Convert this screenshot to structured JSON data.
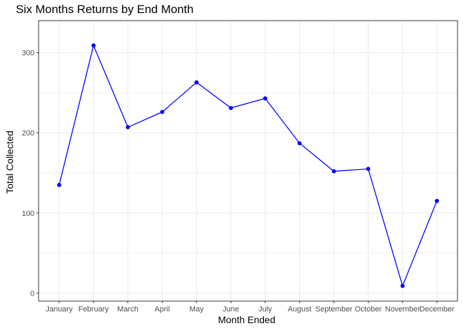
{
  "chart_data": {
    "type": "line",
    "title": "Six Months Returns by End Month",
    "xlabel": "Month Ended",
    "ylabel": "Total Collected",
    "categories": [
      "January",
      "February",
      "March",
      "April",
      "May",
      "June",
      "July",
      "August",
      "September",
      "October",
      "November",
      "December"
    ],
    "series": [
      {
        "values": [
          135,
          309,
          207,
          226,
          263,
          231,
          243,
          187,
          152,
          155,
          9,
          115
        ],
        "color": "#0000ff"
      }
    ],
    "ylim": [
      -10,
      340
    ],
    "yticks": [
      0,
      100,
      200,
      300
    ],
    "grid": true,
    "legend": "none",
    "panel_border_color": "#333333",
    "grid_color": "#ebebeb"
  }
}
